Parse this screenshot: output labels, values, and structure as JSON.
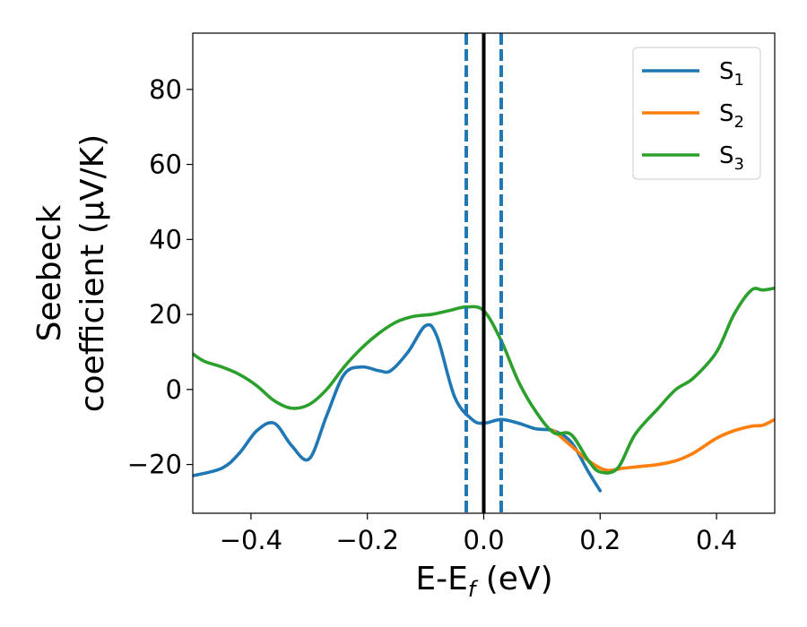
{
  "chart_data": {
    "type": "line",
    "xlabel_main": "E-E",
    "xlabel_sub": "f",
    "xlabel_unit": " (eV)",
    "ylabel_line1": "Seebeck",
    "ylabel_line2": "coefficient  (μV/K)",
    "xlim": [
      -0.5,
      0.5
    ],
    "ylim": [
      -33,
      95
    ],
    "xticks": [
      -0.4,
      -0.2,
      0.0,
      0.2,
      0.4
    ],
    "xtick_labels": [
      "−0.4",
      "−0.2",
      "0.0",
      "0.2",
      "0.4"
    ],
    "yticks": [
      -20,
      0,
      20,
      40,
      60,
      80
    ],
    "ytick_labels": [
      "−20",
      "0",
      "20",
      "40",
      "60",
      "80"
    ],
    "grid": false,
    "legend_position": "top-right",
    "vlines": [
      {
        "x": 0.0,
        "color": "#000000",
        "style": "solid"
      },
      {
        "x": -0.03,
        "color": "#1f77b4",
        "style": "dashed"
      },
      {
        "x": 0.03,
        "color": "#1f77b4",
        "style": "dashed"
      }
    ],
    "series": [
      {
        "name": "S",
        "sub": "1",
        "color": "#1f77b4",
        "x": [
          -0.5,
          -0.45,
          -0.42,
          -0.39,
          -0.36,
          -0.33,
          -0.3,
          -0.27,
          -0.24,
          -0.21,
          -0.18,
          -0.16,
          -0.13,
          -0.1,
          -0.08,
          -0.05,
          -0.02,
          0.0,
          0.03,
          0.06,
          0.09,
          0.12,
          0.15,
          0.18,
          0.2
        ],
        "y": [
          -23,
          -21,
          -17,
          -11,
          -9,
          -15,
          -18.5,
          -7,
          4,
          6,
          5,
          5,
          10,
          17,
          14,
          -2,
          -8,
          -9,
          -8,
          -9,
          -10.5,
          -11,
          -14,
          -22,
          -27
        ]
      },
      {
        "name": "S",
        "sub": "2",
        "color": "#ff7f0e",
        "x": [
          0.12,
          0.15,
          0.18,
          0.21,
          0.24,
          0.27,
          0.3,
          0.33,
          0.36,
          0.4,
          0.43,
          0.46,
          0.48,
          0.5
        ],
        "y": [
          -11,
          -15,
          -19,
          -21.5,
          -21,
          -20.5,
          -20,
          -19,
          -17,
          -13,
          -11,
          -9.8,
          -9.5,
          -8
        ]
      },
      {
        "name": "S",
        "sub": "3",
        "color": "#2ca02c",
        "x": [
          -0.5,
          -0.48,
          -0.45,
          -0.42,
          -0.39,
          -0.36,
          -0.33,
          -0.3,
          -0.27,
          -0.24,
          -0.21,
          -0.18,
          -0.15,
          -0.12,
          -0.09,
          -0.06,
          -0.03,
          0.0,
          0.03,
          0.06,
          0.09,
          0.12,
          0.15,
          0.18,
          0.2,
          0.23,
          0.26,
          0.3,
          0.33,
          0.36,
          0.4,
          0.43,
          0.46,
          0.48,
          0.5
        ],
        "y": [
          9.5,
          7.5,
          6,
          4,
          1,
          -3,
          -5,
          -4,
          0,
          6,
          11,
          15,
          18,
          19.5,
          20,
          21,
          22,
          21,
          13,
          2,
          -6,
          -11.5,
          -12,
          -19,
          -22,
          -21,
          -12,
          -5,
          0,
          3,
          10,
          20,
          26.5,
          26.5,
          27
        ]
      }
    ]
  }
}
